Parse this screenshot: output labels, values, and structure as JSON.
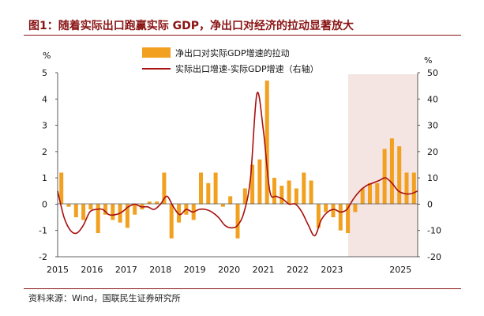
{
  "title": "图1：随着实际出口跑赢实际 GDP，净出口对经济的拉动显著放大",
  "source": "资料来源：Wind，国联民生证券研究所",
  "colors": {
    "bar": "#f2a01f",
    "line": "#a80f0f",
    "shade": "#f4e4e2",
    "title": "#8a1414"
  },
  "chart_data": {
    "type": "bar+line",
    "left_unit": "%",
    "right_unit": "%",
    "left_ylim": [
      -2,
      5
    ],
    "right_ylim": [
      -20,
      50
    ],
    "left_ticks": [
      "5",
      "4",
      "3",
      "2",
      "1",
      "0",
      "-1",
      "-2"
    ],
    "right_ticks": [
      "50",
      "40",
      "30",
      "20",
      "10",
      "0",
      "-10",
      "-20"
    ],
    "x_labels": [
      "2015",
      "2016",
      "2017",
      "2018",
      "2019",
      "2020",
      "2021",
      "2022",
      "2023",
      "2025"
    ],
    "shaded_period": "2023-2025",
    "series": [
      {
        "name": "净出口对实际GDP增速的拉动",
        "axis": "left",
        "type": "bar",
        "values": [
          1.2,
          -0.1,
          -0.5,
          -0.6,
          -0.2,
          -1.1,
          -0.4,
          -0.6,
          -0.7,
          -0.9,
          -0.4,
          -0.2,
          0.1,
          0.1,
          1.2,
          -1.3,
          -0.7,
          -0.4,
          -0.6,
          1.2,
          0.8,
          1.2,
          -0.1,
          0.3,
          -1.3,
          0.6,
          1.5,
          1.7,
          4.7,
          1.0,
          0.7,
          0.9,
          0.6,
          1.2,
          0.9,
          -0.9,
          -0.3,
          -0.5,
          -1.0,
          -1.1,
          -0.3,
          0.6,
          0.8,
          0.8,
          2.1,
          2.5,
          2.2,
          1.2,
          1.2
        ]
      },
      {
        "name": "实际出口增速-实际GDP增速（右轴）",
        "axis": "right",
        "type": "line",
        "values": [
          5,
          -5,
          -10,
          -11,
          -8,
          -3,
          -2,
          -2,
          -4,
          -4,
          -3,
          -1,
          0,
          -1,
          -1,
          -2,
          0,
          3,
          -1,
          -4,
          -2,
          -3,
          -2,
          -2,
          -3,
          -5,
          -8,
          -9,
          -8,
          -3,
          10,
          42,
          28,
          5,
          3,
          2,
          0,
          0,
          -3,
          -8,
          -12,
          -6,
          -3,
          -2,
          -3,
          -2,
          2,
          5,
          7,
          8,
          9,
          10,
          8,
          5,
          4,
          4,
          5
        ]
      }
    ]
  }
}
